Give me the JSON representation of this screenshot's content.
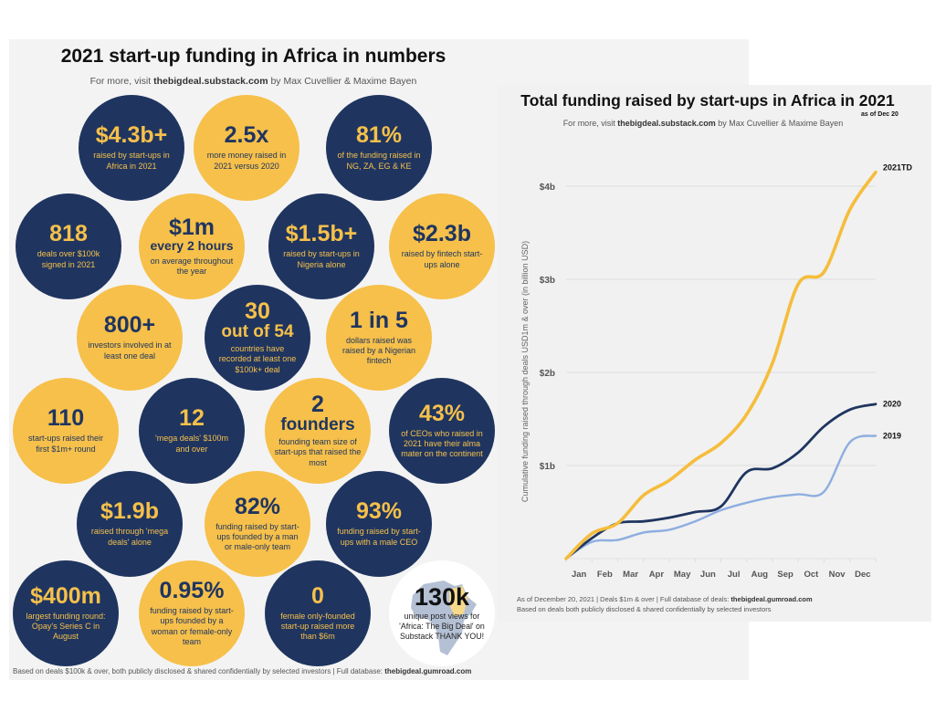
{
  "infographic": {
    "title": "2021 start-up funding in Africa in numbers",
    "subtitle_pre": "For more, visit ",
    "subtitle_link": "thebigdeal.substack.com",
    "subtitle_post": " by Max Cuvellier & Maxime Bayen",
    "colors": {
      "navy": "#1f3560",
      "yellow": "#f6c04a",
      "white": "#ffffff"
    },
    "bubbles": [
      {
        "color": "navy",
        "big": "$4.3b+",
        "desc": "raised by start-ups in Africa in 2021"
      },
      {
        "color": "yellow",
        "big": "2.5x",
        "desc": "more money raised in 2021 versus 2020"
      },
      {
        "color": "navy",
        "big": "81%",
        "desc": "of the funding raised in NG, ZA, EG & KE"
      },
      {
        "color": "navy",
        "big": "818",
        "desc": "deals over $100k signed in 2021"
      },
      {
        "color": "yellow",
        "big": "$1m",
        "mid": "every 2 hours",
        "desc": "on average throughout the year"
      },
      {
        "color": "navy",
        "big": "$1.5b+",
        "desc": "raised by start-ups in Nigeria alone"
      },
      {
        "color": "yellow",
        "big": "$2.3b",
        "desc": "raised by fintech start-ups alone"
      },
      {
        "color": "yellow",
        "big": "800+",
        "desc": "investors involved in at least one deal"
      },
      {
        "color": "navy",
        "big": "30",
        "mid": "out of 54",
        "desc": "countries have recorded at least one $100k+ deal"
      },
      {
        "color": "yellow",
        "big": "1 in 5",
        "desc": "dollars raised was raised by a Nigerian fintech"
      },
      {
        "color": "yellow",
        "big": "110",
        "desc": "start-ups raised their first $1m+ round"
      },
      {
        "color": "navy",
        "big": "12",
        "desc": "'mega deals' $100m and over"
      },
      {
        "color": "yellow",
        "big": "2",
        "mid": "founders",
        "desc": "founding team size of start-ups that raised the most"
      },
      {
        "color": "navy",
        "big": "43%",
        "desc": "of CEOs who raised in 2021 have their alma mater on the continent"
      },
      {
        "color": "navy",
        "big": "$1.9b",
        "desc": "raised through 'mega deals' alone"
      },
      {
        "color": "yellow",
        "big": "82%",
        "desc": "funding raised by start-ups founded by a man or male-only team"
      },
      {
        "color": "navy",
        "big": "93%",
        "desc": "funding raised by start-ups with a male CEO"
      },
      {
        "color": "navy",
        "big": "$400m",
        "desc": "largest funding round: Opay's Series C in August"
      },
      {
        "color": "yellow",
        "big": "0.95%",
        "desc": "funding raised by start-ups founded by a woman or female-only team"
      },
      {
        "color": "navy",
        "big": "0",
        "desc": "female only-founded start-up raised more than $6m"
      },
      {
        "color": "white",
        "big": "130k",
        "desc": "unique post views for 'Africa: The Big Deal' on Substack THANK YOU!",
        "icon": "africa-map-icon"
      }
    ],
    "footer_pre": "Based on deals $100k & over, both publicly disclosed & shared confidentially by selected investors | Full database: ",
    "footer_link": "thebigdeal.gumroad.com"
  },
  "chart_data": {
    "type": "line",
    "title": "Total funding raised by start-ups in Africa in 2021",
    "title_note": "as of Dec 20",
    "subtitle_pre": "For more, visit ",
    "subtitle_link": "thebigdeal.substack.com",
    "subtitle_post": " by Max Cuvellier & Maxime Bayen",
    "xlabel": "",
    "ylabel": "Cumulative funding raised  through deals USD1m & over (in billion USD)",
    "x_ticks": [
      "Jan",
      "Feb",
      "Mar",
      "Apr",
      "May",
      "Jun",
      "Jul",
      "Aug",
      "Sep",
      "Oct",
      "Nov",
      "Dec"
    ],
    "x": [
      0,
      1,
      2,
      3,
      4,
      5,
      6,
      7,
      8,
      9,
      10,
      11,
      12
    ],
    "x_note": "month boundaries: 0 = start of Jan, 12 = end of Dec",
    "y_ticks": [
      {
        "value": 1,
        "label": "$1b"
      },
      {
        "value": 2,
        "label": "$2b"
      },
      {
        "value": 3,
        "label": "$3b"
      },
      {
        "value": 4,
        "label": "$4b"
      }
    ],
    "ylim": [
      0,
      4.2
    ],
    "grid": true,
    "legend": "inline labels at line ends (right)",
    "series": [
      {
        "name": "2021TD",
        "color": "#f5bd3c",
        "values": [
          0,
          0.27,
          0.38,
          0.68,
          0.84,
          1.06,
          1.24,
          1.55,
          2.1,
          2.95,
          3.08,
          3.75,
          4.15
        ]
      },
      {
        "name": "2020",
        "color": "#1f3560",
        "values": [
          0,
          0.22,
          0.38,
          0.4,
          0.44,
          0.5,
          0.56,
          0.93,
          0.97,
          1.14,
          1.42,
          1.6,
          1.66
        ]
      },
      {
        "name": "2019",
        "color": "#8eaee0",
        "values": [
          0,
          0.18,
          0.2,
          0.28,
          0.31,
          0.4,
          0.52,
          0.6,
          0.66,
          0.69,
          0.72,
          1.25,
          1.32
        ]
      }
    ],
    "footer1_pre": "As of December 20, 2021 | Deals $1m & over | Full database of deals: ",
    "footer1_link": "thebigdeal.gumroad.com",
    "footer2": "Based on deals both publicly disclosed & shared confidentially by selected investors"
  }
}
